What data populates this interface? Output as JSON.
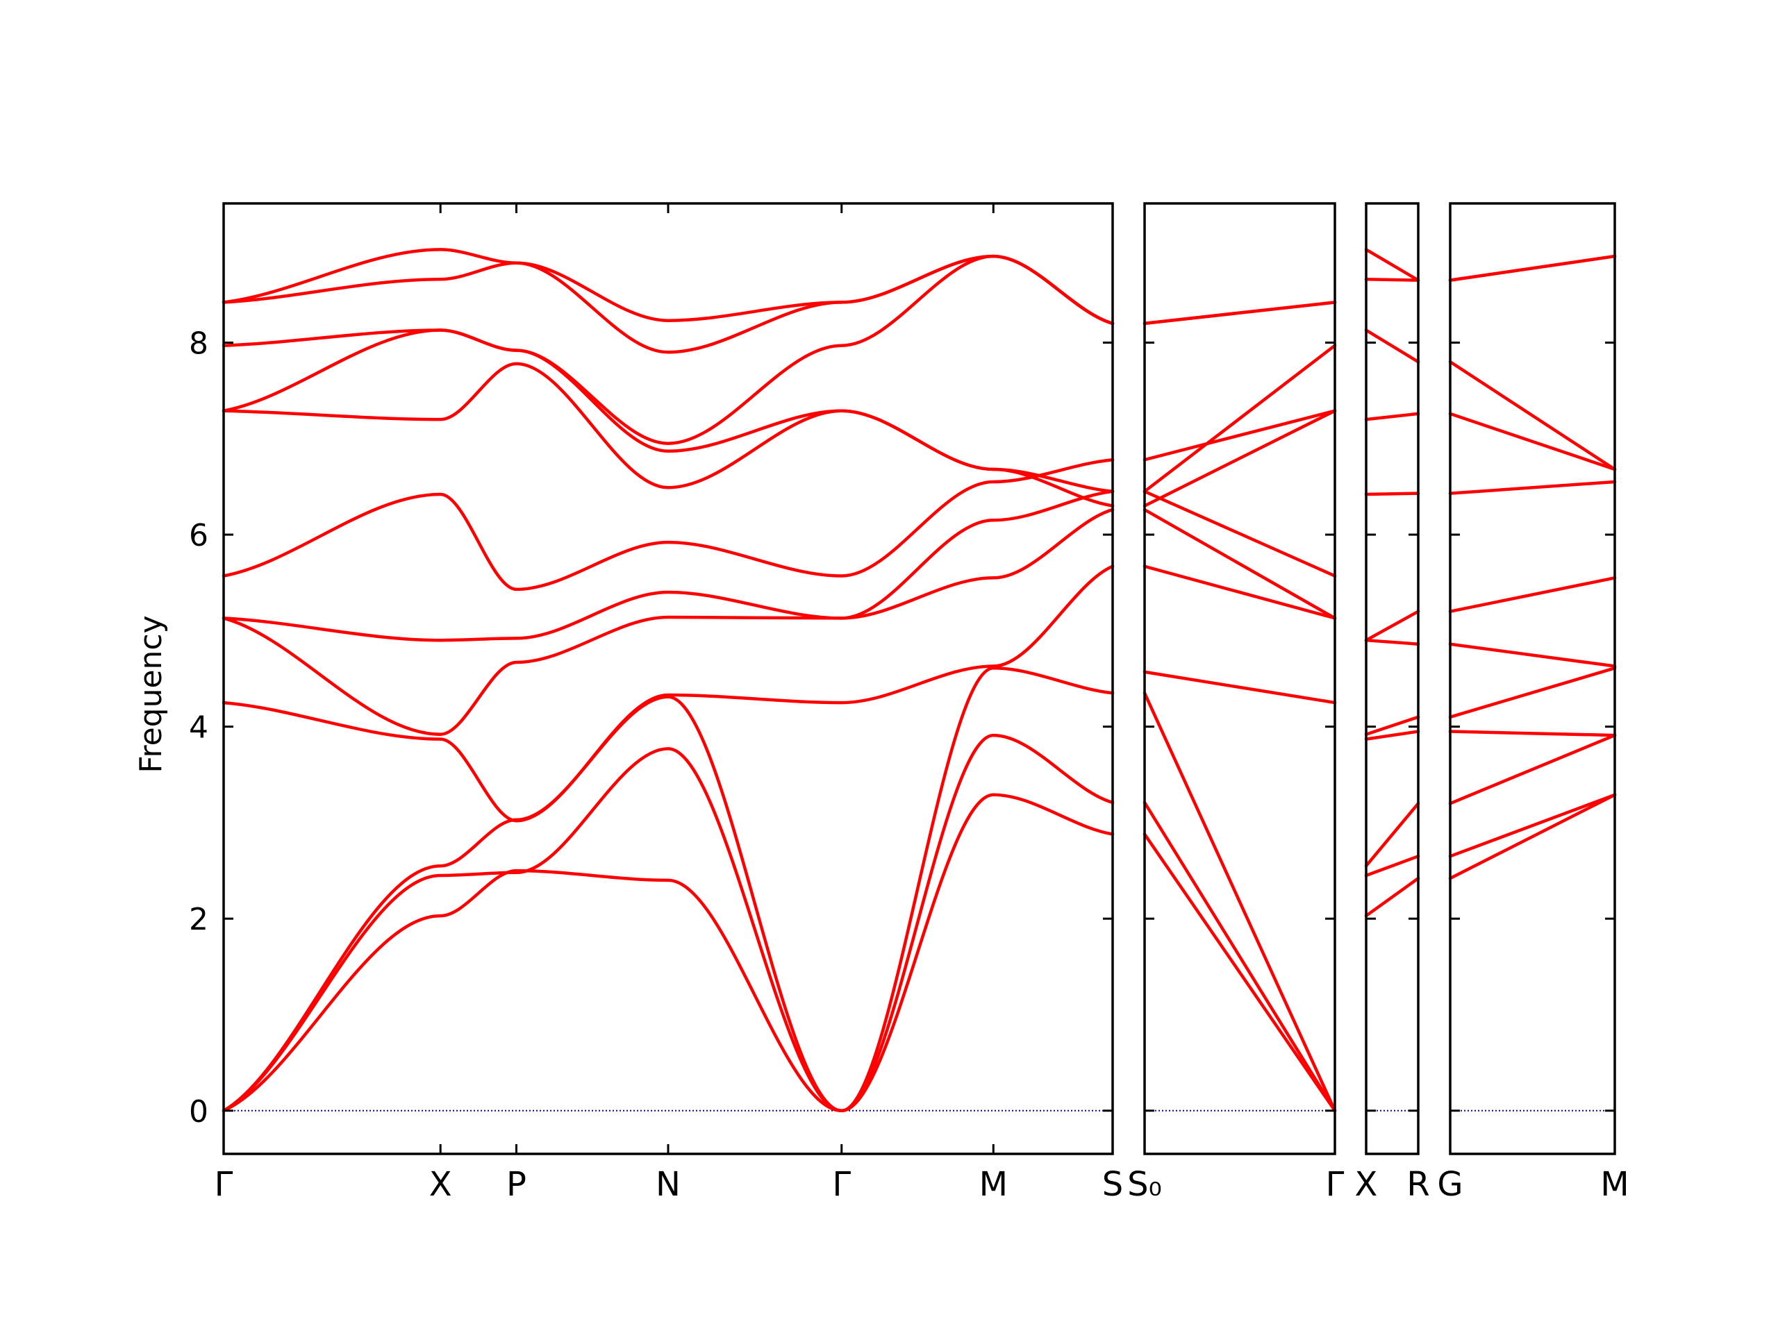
{
  "chart_data": {
    "type": "line",
    "ylabel": "Frequency",
    "ylim": [
      -0.45,
      9.45
    ],
    "yticks": [
      0,
      2,
      4,
      6,
      8
    ],
    "colors": {
      "bands": "#ff0000",
      "zero_line": "#0000cc",
      "axes": "#000000"
    },
    "panels": [
      {
        "x": [
          0,
          1.0,
          1.35,
          2.05,
          2.85,
          3.55,
          4.1
        ],
        "labels": [
          "Γ",
          "X",
          "P",
          "N",
          "Γ",
          "M",
          "S"
        ],
        "bands": [
          [
            0.0,
            2.03,
            2.5,
            2.4,
            0.0,
            3.29,
            2.88
          ],
          [
            0.0,
            2.45,
            2.48,
            3.77,
            0.0,
            3.91,
            3.21
          ],
          [
            0.0,
            2.55,
            3.03,
            4.31,
            0.0,
            4.61,
            4.35
          ],
          [
            4.25,
            3.87,
            3.02,
            4.33,
            4.25,
            4.63,
            5.67
          ],
          [
            5.13,
            3.92,
            4.67,
            5.14,
            5.13,
            5.55,
            6.26
          ],
          [
            5.13,
            4.9,
            4.92,
            5.4,
            5.13,
            6.15,
            6.45
          ],
          [
            5.57,
            6.42,
            5.43,
            5.92,
            5.57,
            6.55,
            6.78
          ],
          [
            7.29,
            7.2,
            7.78,
            6.49,
            7.29,
            6.68,
            6.3
          ],
          [
            7.29,
            8.13,
            7.92,
            6.87,
            7.29,
            6.68,
            6.45
          ],
          [
            7.97,
            8.13,
            7.92,
            6.95,
            7.97,
            8.9,
            8.2
          ],
          [
            8.42,
            8.66,
            8.83,
            7.9,
            8.42,
            8.9,
            8.2
          ],
          [
            8.42,
            8.97,
            8.83,
            8.23,
            8.42,
            8.9,
            8.2
          ]
        ]
      },
      {
        "x": [
          0,
          1.0
        ],
        "labels": [
          "S₀",
          "Γ"
        ],
        "bands": [
          [
            2.88,
            0.0
          ],
          [
            3.21,
            0.0
          ],
          [
            4.35,
            0.0
          ],
          [
            4.57,
            4.25
          ],
          [
            5.67,
            5.13
          ],
          [
            6.26,
            5.13
          ],
          [
            6.45,
            5.57
          ],
          [
            6.78,
            7.29
          ],
          [
            6.3,
            7.29
          ],
          [
            6.45,
            7.97
          ],
          [
            8.2,
            8.42
          ],
          [
            8.2,
            8.42
          ]
        ]
      },
      {
        "x": [
          0,
          1.0
        ],
        "labels": [
          "X",
          "R"
        ],
        "bands": [
          [
            2.03,
            2.42
          ],
          [
            2.45,
            2.65
          ],
          [
            2.55,
            3.2
          ],
          [
            3.87,
            3.95
          ],
          [
            3.92,
            4.1
          ],
          [
            4.9,
            4.86
          ],
          [
            4.9,
            5.2
          ],
          [
            6.42,
            6.43
          ],
          [
            7.2,
            7.26
          ],
          [
            8.13,
            7.8
          ],
          [
            8.66,
            8.65
          ],
          [
            8.97,
            8.65
          ]
        ]
      },
      {
        "x": [
          0,
          1.0
        ],
        "labels": [
          "G",
          "M"
        ],
        "bands": [
          [
            2.42,
            3.29
          ],
          [
            2.65,
            3.29
          ],
          [
            3.2,
            3.91
          ],
          [
            3.95,
            3.91
          ],
          [
            4.1,
            4.61
          ],
          [
            4.86,
            4.63
          ],
          [
            5.2,
            5.55
          ],
          [
            6.43,
            6.55
          ],
          [
            7.26,
            6.68
          ],
          [
            7.8,
            6.68
          ],
          [
            8.65,
            8.9
          ],
          [
            8.65,
            8.9
          ]
        ]
      }
    ]
  }
}
